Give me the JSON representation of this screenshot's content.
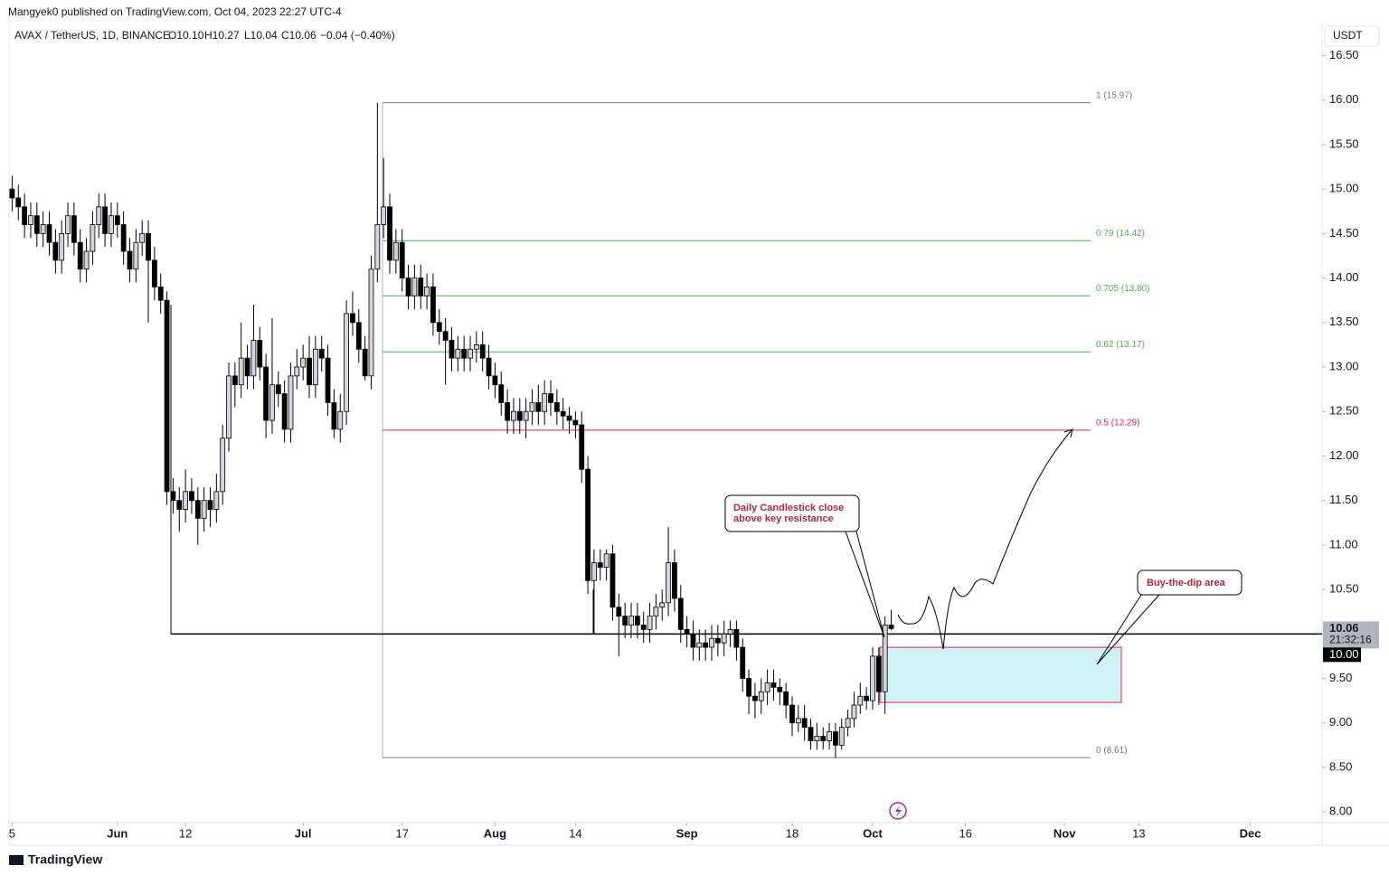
{
  "header": {
    "published": "Mangyek0 published on TradingView.com, Oct 04, 2023 22:27 UTC-4",
    "symbol": "AVAX / TetherUS, 1D, BINANCE",
    "ohlc": [
      "O10.10",
      "H10.27",
      "L10.04",
      "C10.06",
      "−0.04 (−0.40%)"
    ],
    "currency": "USDT"
  },
  "footer": {
    "brand": "TradingView"
  },
  "chart_data": {
    "type": "candlestick",
    "up_color": "#d1d4dc",
    "down_color": "#000000",
    "x": [
      0,
      1,
      2,
      3,
      4,
      5,
      6,
      7,
      8,
      9,
      10,
      11,
      12,
      13,
      14,
      15,
      16,
      17,
      18,
      19,
      20,
      21,
      22,
      23,
      24,
      25,
      26,
      27,
      28,
      29,
      30,
      31,
      32,
      33,
      34,
      35,
      36,
      37,
      38,
      39,
      40,
      41,
      42,
      43,
      44,
      45,
      46,
      47,
      48,
      49,
      50,
      51,
      52,
      53,
      54,
      55,
      56,
      57,
      58,
      59,
      60,
      61,
      62,
      63,
      64,
      65,
      66,
      67,
      68,
      69,
      70,
      71,
      72,
      73,
      74,
      75,
      76,
      77,
      78,
      79,
      80,
      81,
      82,
      83,
      84,
      85,
      86,
      87,
      88,
      89,
      90,
      91,
      92,
      93,
      94,
      95,
      96,
      97,
      98,
      99,
      100,
      101,
      102,
      103,
      104,
      105,
      106,
      107,
      108,
      109,
      110,
      111,
      112,
      113,
      114,
      115,
      116,
      117,
      118,
      119,
      120,
      121,
      122,
      123,
      124,
      125,
      126,
      127,
      128,
      129,
      130,
      131,
      132,
      133,
      134,
      135,
      136,
      137,
      138,
      139,
      140,
      141,
      142
    ],
    "candles": [
      [
        15.0,
        15.15,
        14.75,
        14.9
      ],
      [
        14.9,
        15.05,
        14.65,
        14.8
      ],
      [
        14.8,
        14.95,
        14.45,
        14.6
      ],
      [
        14.6,
        14.85,
        14.45,
        14.7
      ],
      [
        14.7,
        14.85,
        14.35,
        14.5
      ],
      [
        14.5,
        14.75,
        14.35,
        14.6
      ],
      [
        14.6,
        14.75,
        14.25,
        14.4
      ],
      [
        14.4,
        14.55,
        14.05,
        14.2
      ],
      [
        14.2,
        14.65,
        14.05,
        14.5
      ],
      [
        14.5,
        14.85,
        14.35,
        14.7
      ],
      [
        14.7,
        14.85,
        14.25,
        14.4
      ],
      [
        14.4,
        14.55,
        13.95,
        14.1
      ],
      [
        14.1,
        14.45,
        13.95,
        14.3
      ],
      [
        14.3,
        14.75,
        14.15,
        14.6
      ],
      [
        14.6,
        14.95,
        14.45,
        14.8
      ],
      [
        14.8,
        14.95,
        14.35,
        14.5
      ],
      [
        14.5,
        14.85,
        14.35,
        14.7
      ],
      [
        14.7,
        14.85,
        14.45,
        14.6
      ],
      [
        14.6,
        14.75,
        14.15,
        14.3
      ],
      [
        14.3,
        14.45,
        13.95,
        14.1
      ],
      [
        14.1,
        14.55,
        13.95,
        14.4
      ],
      [
        14.4,
        14.65,
        14.25,
        14.5
      ],
      [
        14.5,
        14.65,
        13.5,
        14.2
      ],
      [
        14.2,
        14.35,
        13.75,
        13.9
      ],
      [
        13.9,
        14.05,
        13.6,
        13.75
      ],
      [
        13.75,
        13.85,
        11.45,
        11.6
      ],
      [
        11.6,
        11.75,
        11.35,
        11.5
      ],
      [
        11.5,
        11.65,
        11.15,
        11.4
      ],
      [
        11.4,
        11.85,
        11.25,
        11.6
      ],
      [
        11.6,
        11.75,
        11.35,
        11.5
      ],
      [
        11.5,
        11.65,
        11.0,
        11.3
      ],
      [
        11.3,
        11.65,
        11.15,
        11.5
      ],
      [
        11.5,
        11.65,
        11.2,
        11.4
      ],
      [
        11.4,
        11.8,
        11.25,
        11.6
      ],
      [
        11.6,
        12.35,
        11.45,
        12.2
      ],
      [
        12.2,
        13.05,
        12.05,
        12.9
      ],
      [
        12.9,
        13.05,
        12.55,
        12.8
      ],
      [
        12.8,
        13.5,
        12.65,
        13.1
      ],
      [
        13.1,
        13.25,
        12.75,
        12.9
      ],
      [
        12.9,
        13.7,
        12.75,
        13.3
      ],
      [
        13.3,
        13.45,
        12.85,
        13.0
      ],
      [
        13.0,
        13.15,
        12.2,
        12.4
      ],
      [
        12.4,
        13.55,
        12.25,
        12.8
      ],
      [
        12.8,
        12.95,
        12.55,
        12.7
      ],
      [
        12.7,
        12.85,
        12.15,
        12.3
      ],
      [
        12.3,
        13.05,
        12.15,
        12.9
      ],
      [
        12.9,
        13.2,
        12.75,
        13.0
      ],
      [
        13.0,
        13.25,
        12.85,
        13.1
      ],
      [
        13.1,
        13.35,
        12.65,
        12.8
      ],
      [
        12.8,
        13.35,
        12.65,
        13.2
      ],
      [
        13.2,
        13.35,
        12.95,
        13.1
      ],
      [
        13.1,
        13.25,
        12.45,
        12.6
      ],
      [
        12.6,
        12.75,
        12.2,
        12.3
      ],
      [
        12.3,
        12.7,
        12.15,
        12.5
      ],
      [
        12.5,
        13.75,
        12.35,
        13.6
      ],
      [
        13.6,
        13.85,
        13.35,
        13.5
      ],
      [
        13.5,
        13.65,
        13.05,
        13.2
      ],
      [
        13.2,
        13.35,
        12.85,
        12.9
      ],
      [
        12.9,
        14.25,
        12.75,
        14.1
      ],
      [
        14.1,
        15.97,
        13.95,
        14.6
      ],
      [
        14.6,
        15.35,
        14.45,
        14.8
      ],
      [
        14.8,
        14.95,
        14.05,
        14.2
      ],
      [
        14.2,
        14.55,
        14.05,
        14.4
      ],
      [
        14.4,
        14.55,
        13.85,
        14.0
      ],
      [
        14.0,
        14.15,
        13.65,
        13.8
      ],
      [
        13.8,
        14.15,
        13.65,
        14.0
      ],
      [
        14.0,
        14.15,
        13.65,
        13.8
      ],
      [
        13.8,
        14.05,
        13.65,
        13.9
      ],
      [
        13.9,
        14.05,
        13.35,
        13.5
      ],
      [
        13.5,
        13.65,
        13.25,
        13.4
      ],
      [
        13.4,
        13.55,
        12.8,
        13.3
      ],
      [
        13.3,
        13.45,
        12.95,
        13.1
      ],
      [
        13.1,
        13.35,
        12.95,
        13.2
      ],
      [
        13.2,
        13.35,
        12.95,
        13.1
      ],
      [
        13.1,
        13.35,
        12.95,
        13.2
      ],
      [
        13.2,
        13.4,
        13.05,
        13.25
      ],
      [
        13.25,
        13.4,
        12.95,
        13.1
      ],
      [
        13.1,
        13.25,
        12.75,
        12.9
      ],
      [
        12.9,
        13.05,
        12.65,
        12.8
      ],
      [
        12.8,
        12.95,
        12.45,
        12.6
      ],
      [
        12.6,
        12.75,
        12.25,
        12.4
      ],
      [
        12.4,
        12.65,
        12.25,
        12.5
      ],
      [
        12.5,
        12.65,
        12.25,
        12.4
      ],
      [
        12.4,
        12.65,
        12.2,
        12.5
      ],
      [
        12.5,
        12.75,
        12.35,
        12.6
      ],
      [
        12.6,
        12.8,
        12.35,
        12.5
      ],
      [
        12.5,
        12.85,
        12.35,
        12.7
      ],
      [
        12.7,
        12.85,
        12.45,
        12.6
      ],
      [
        12.6,
        12.75,
        12.35,
        12.5
      ],
      [
        12.5,
        12.65,
        12.3,
        12.45
      ],
      [
        12.45,
        12.55,
        12.25,
        12.4
      ],
      [
        12.4,
        12.5,
        12.2,
        12.35
      ],
      [
        12.35,
        12.5,
        11.7,
        11.85
      ],
      [
        11.85,
        12.0,
        10.45,
        10.6
      ],
      [
        10.6,
        10.95,
        10.0,
        10.8
      ],
      [
        10.8,
        10.95,
        10.6,
        10.75
      ],
      [
        10.75,
        10.95,
        10.6,
        10.9
      ],
      [
        10.9,
        11.0,
        10.15,
        10.3
      ],
      [
        10.3,
        10.45,
        9.75,
        10.2
      ],
      [
        10.2,
        10.35,
        9.95,
        10.1
      ],
      [
        10.1,
        10.35,
        9.95,
        10.2
      ],
      [
        10.2,
        10.35,
        9.95,
        10.1
      ],
      [
        10.1,
        10.25,
        9.9,
        10.05
      ],
      [
        10.05,
        10.35,
        9.9,
        10.2
      ],
      [
        10.2,
        10.45,
        10.05,
        10.3
      ],
      [
        10.3,
        10.5,
        10.15,
        10.35
      ],
      [
        10.35,
        11.2,
        10.2,
        10.8
      ],
      [
        10.8,
        10.95,
        10.25,
        10.4
      ],
      [
        10.4,
        10.55,
        9.9,
        10.05
      ],
      [
        10.05,
        10.2,
        9.85,
        10.0
      ],
      [
        10.0,
        10.15,
        9.7,
        9.85
      ],
      [
        9.85,
        10.05,
        9.7,
        9.9
      ],
      [
        9.9,
        10.05,
        9.7,
        9.85
      ],
      [
        9.85,
        10.1,
        9.7,
        9.95
      ],
      [
        9.95,
        10.1,
        9.75,
        9.9
      ],
      [
        9.9,
        10.15,
        9.75,
        10.0
      ],
      [
        10.0,
        10.15,
        9.85,
        10.05
      ],
      [
        10.05,
        10.15,
        9.7,
        9.85
      ],
      [
        9.85,
        9.95,
        9.35,
        9.5
      ],
      [
        9.5,
        9.6,
        9.1,
        9.3
      ],
      [
        9.3,
        9.45,
        9.05,
        9.25
      ],
      [
        9.25,
        9.5,
        9.1,
        9.35
      ],
      [
        9.35,
        9.6,
        9.2,
        9.45
      ],
      [
        9.45,
        9.6,
        9.25,
        9.4
      ],
      [
        9.4,
        9.5,
        9.2,
        9.35
      ],
      [
        9.35,
        9.45,
        9.05,
        9.2
      ],
      [
        9.2,
        9.3,
        8.85,
        9.0
      ],
      [
        9.0,
        9.2,
        8.9,
        9.05
      ],
      [
        9.05,
        9.2,
        8.8,
        8.95
      ],
      [
        8.95,
        9.05,
        8.7,
        8.8
      ],
      [
        8.8,
        9.0,
        8.7,
        8.85
      ],
      [
        8.85,
        8.95,
        8.7,
        8.8
      ],
      [
        8.8,
        9.0,
        8.7,
        8.9
      ],
      [
        8.9,
        9.0,
        8.61,
        8.75
      ],
      [
        8.75,
        9.05,
        8.7,
        8.95
      ],
      [
        8.95,
        9.15,
        8.85,
        9.05
      ],
      [
        9.05,
        9.35,
        8.95,
        9.2
      ],
      [
        9.2,
        9.45,
        9.1,
        9.3
      ],
      [
        9.3,
        9.4,
        9.15,
        9.25
      ],
      [
        9.25,
        9.85,
        9.15,
        9.75
      ],
      [
        9.75,
        9.85,
        9.2,
        9.35
      ],
      [
        9.35,
        10.2,
        9.1,
        10.1
      ],
      [
        10.1,
        10.27,
        10.04,
        10.06
      ]
    ],
    "xlim": [
      -0.5,
      211.6
    ],
    "xticks": [
      {
        "value": 0,
        "label": "5"
      },
      {
        "value": 17,
        "label": "Jun"
      },
      {
        "value": 28,
        "label": "12"
      },
      {
        "value": 47,
        "label": "Jul"
      },
      {
        "value": 63,
        "label": "17"
      },
      {
        "value": 78,
        "label": "Aug"
      },
      {
        "value": 91,
        "label": "14"
      },
      {
        "value": 109,
        "label": "Sep"
      },
      {
        "value": 126,
        "label": "18"
      },
      {
        "value": 139,
        "label": "Oct"
      },
      {
        "value": 154,
        "label": "16"
      },
      {
        "value": 170,
        "label": "Nov"
      },
      {
        "value": 182,
        "label": "13"
      },
      {
        "value": 200,
        "label": "Dec"
      }
    ],
    "ylim": [
      7.88,
      16.82
    ],
    "yticks": [
      {
        "value": 8,
        "label": "8.00"
      },
      {
        "value": 8.5,
        "label": "8.50"
      },
      {
        "value": 9,
        "label": "9.00"
      },
      {
        "value": 9.5,
        "label": "9.50"
      },
      {
        "value": 10.5,
        "label": "10.50"
      },
      {
        "value": 11,
        "label": "11.00"
      },
      {
        "value": 11.5,
        "label": "11.50"
      },
      {
        "value": 12,
        "label": "12.00"
      },
      {
        "value": 12.5,
        "label": "12.50"
      },
      {
        "value": 13,
        "label": "13.00"
      },
      {
        "value": 13.5,
        "label": "13.50"
      },
      {
        "value": 14,
        "label": "14.00"
      },
      {
        "value": 14.5,
        "label": "14.50"
      },
      {
        "value": 15,
        "label": "15.00"
      },
      {
        "value": 15.5,
        "label": "15.50"
      },
      {
        "value": 16,
        "label": "16.00"
      },
      {
        "value": 16.5,
        "label": "16.50"
      }
    ],
    "fib_levels": [
      {
        "label": "1 (15.97)",
        "value": 15.97,
        "color": "#787b86"
      },
      {
        "label": "0.79 (14.42)",
        "value": 14.42,
        "color": "#4caf50"
      },
      {
        "label": "0.705 (13.80)",
        "value": 13.8,
        "color": "#4caf50"
      },
      {
        "label": "0.62 (13.17)",
        "value": 13.17,
        "color": "#4caf50"
      },
      {
        "label": "0.5 (12.29)",
        "value": 12.29,
        "color": "#e91e63"
      },
      {
        "label": "0 (8.61)",
        "value": 8.61,
        "color": "#787b86"
      }
    ],
    "key_level": {
      "value": 10,
      "label": "10.00"
    },
    "last_price": {
      "value": 10.06,
      "label": "10.06",
      "countdown": "21:32:16"
    },
    "buy_zone": {
      "label": "Buy-the-dip area",
      "range": [
        9.23,
        9.85
      ]
    },
    "callout": [
      "Daily Candlestick close",
      "above key resistance"
    ]
  }
}
